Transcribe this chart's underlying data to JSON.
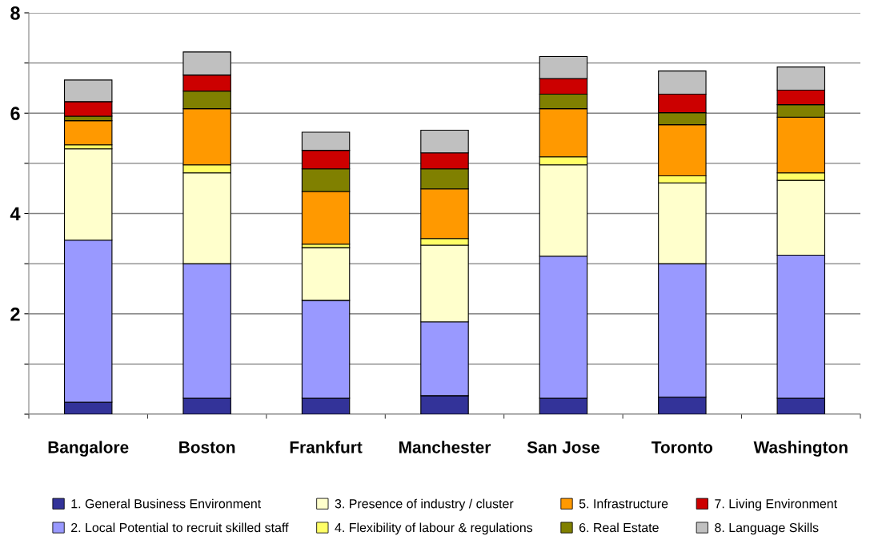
{
  "chart_data": {
    "type": "bar",
    "stacked": true,
    "categories": [
      "Bangalore",
      "Boston",
      "Frankfurt",
      "Manchester",
      "San Jose",
      "Toronto",
      "Washington"
    ],
    "series": [
      {
        "name": "1. General Business Environment",
        "color": "#333399",
        "values": [
          0.24,
          0.32,
          0.32,
          0.37,
          0.32,
          0.34,
          0.32
        ]
      },
      {
        "name": "2. Local Potential to recruit skilled staff",
        "color": "#9999ff",
        "values": [
          3.23,
          2.68,
          1.95,
          1.47,
          2.83,
          2.66,
          2.85
        ]
      },
      {
        "name": "3. Presence of industry / cluster",
        "color": "#ffffcc",
        "values": [
          1.82,
          1.81,
          1.05,
          1.53,
          1.82,
          1.61,
          1.49
        ]
      },
      {
        "name": "4. Flexibility of labour & regulations",
        "color": "#ffff66",
        "values": [
          0.08,
          0.16,
          0.07,
          0.13,
          0.16,
          0.14,
          0.15
        ]
      },
      {
        "name": "5. Infrastructure",
        "color": "#ff9900",
        "values": [
          0.48,
          1.12,
          1.05,
          0.99,
          0.96,
          1.02,
          1.11
        ]
      },
      {
        "name": "6. Real Estate",
        "color": "#808000",
        "values": [
          0.09,
          0.35,
          0.45,
          0.4,
          0.29,
          0.24,
          0.25
        ]
      },
      {
        "name": "7. Living Environment",
        "color": "#cc0000",
        "values": [
          0.29,
          0.32,
          0.37,
          0.32,
          0.31,
          0.37,
          0.29
        ]
      },
      {
        "name": "8. Language Skills",
        "color": "#c0c0c0",
        "values": [
          0.43,
          0.46,
          0.36,
          0.45,
          0.44,
          0.46,
          0.46
        ]
      }
    ],
    "ylim": [
      0,
      8
    ],
    "yticks": [
      {
        "value": 0,
        "label": null
      },
      {
        "value": 1,
        "label": null
      },
      2,
      {
        "value": 3,
        "label": null
      },
      4,
      {
        "value": 5,
        "label": null
      },
      6,
      {
        "value": 7,
        "label": null
      },
      8
    ],
    "grid": "y",
    "legend": "bottom"
  }
}
